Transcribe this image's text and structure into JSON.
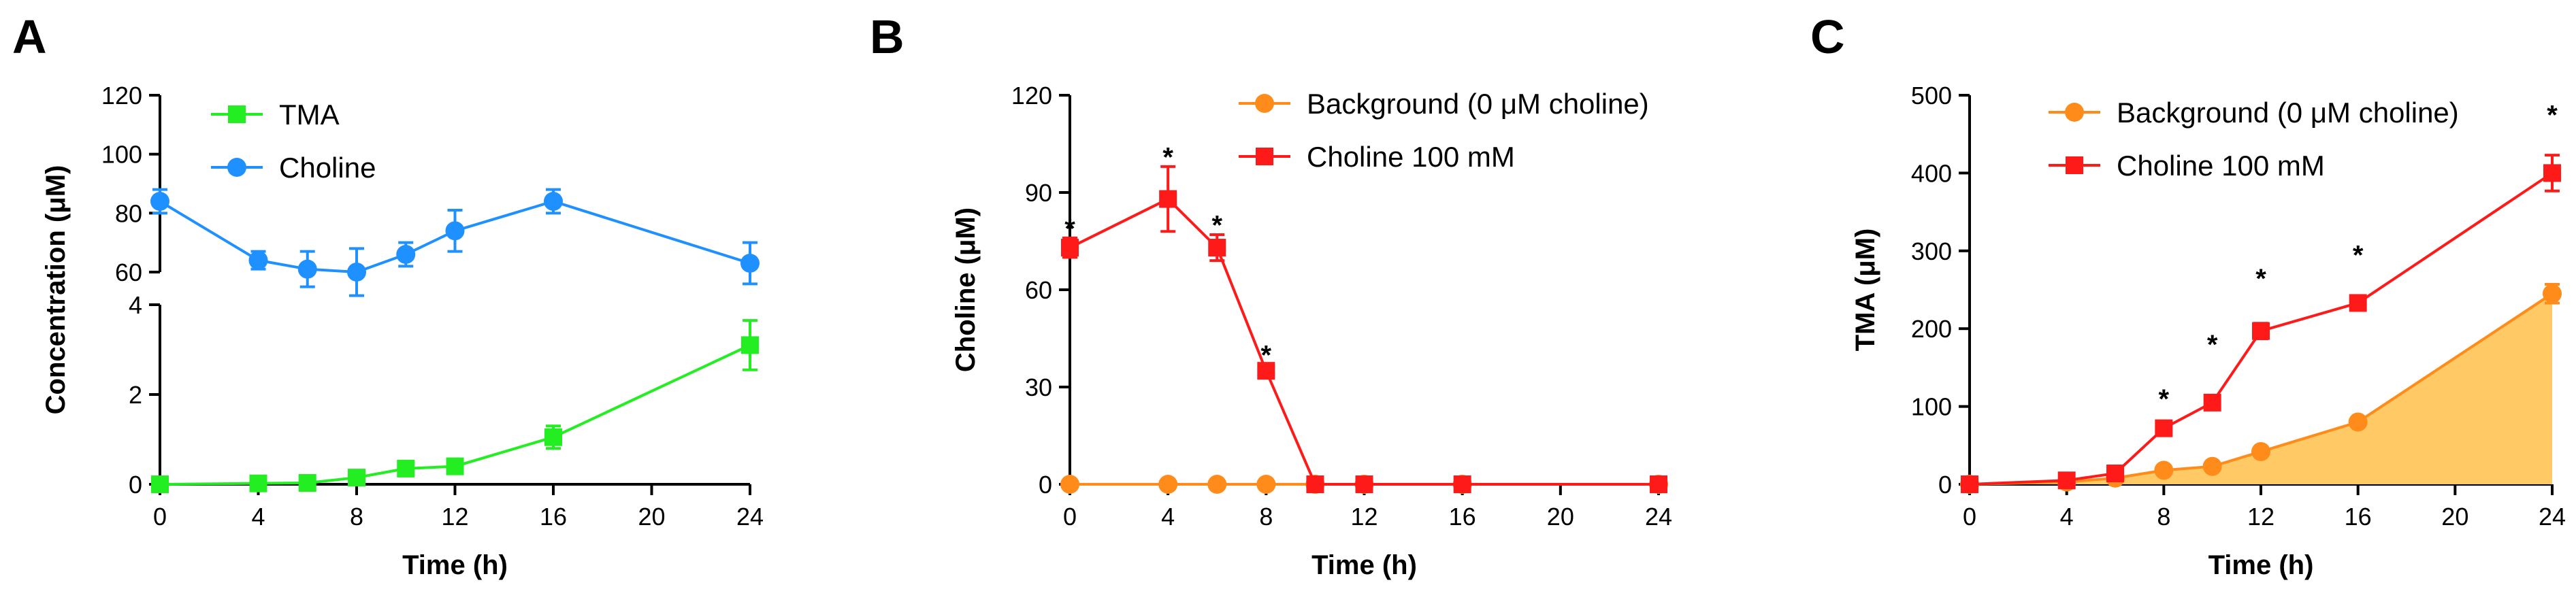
{
  "chart_data": [
    {
      "panel": "A",
      "type": "line",
      "title": "",
      "xlabel": "Time (h)",
      "ylabel": "Concentration (μM)",
      "x_ticks": [
        0,
        4,
        8,
        12,
        16,
        20,
        24
      ],
      "xlim": [
        0,
        24
      ],
      "y_axis_broken": true,
      "y_segments": [
        {
          "range": [
            60,
            120
          ],
          "ticks": [
            60,
            80,
            100,
            120
          ]
        },
        {
          "range": [
            0,
            4
          ],
          "ticks": [
            0,
            2,
            4
          ]
        }
      ],
      "legend_position": "top-left",
      "series": [
        {
          "name": "TMA",
          "color": "#22ee22",
          "marker": "square",
          "segment": 1,
          "x": [
            0,
            4,
            6,
            8,
            10,
            12,
            16,
            24
          ],
          "y": [
            0.0,
            0.02,
            0.03,
            0.15,
            0.35,
            0.4,
            1.05,
            3.1
          ],
          "err": [
            0.03,
            0.03,
            0.05,
            0.08,
            0.1,
            0.1,
            0.25,
            0.55
          ]
        },
        {
          "name": "Choline",
          "color": "#1e90ff",
          "marker": "circle",
          "segment": 0,
          "x": [
            0,
            4,
            6,
            8,
            10,
            12,
            16,
            24
          ],
          "y": [
            84,
            64,
            61,
            60,
            66,
            74,
            84,
            63
          ],
          "err": [
            4,
            3,
            6,
            8,
            4,
            7,
            4,
            7
          ]
        }
      ]
    },
    {
      "panel": "B",
      "type": "line",
      "title": "",
      "xlabel": "Time (h)",
      "ylabel": "Choline (μM)",
      "x_ticks": [
        0,
        4,
        8,
        12,
        16,
        20,
        24
      ],
      "xlim": [
        0,
        24
      ],
      "y_ticks": [
        0,
        30,
        60,
        90,
        120
      ],
      "ylim": [
        0,
        120
      ],
      "legend_position": "top-right",
      "series": [
        {
          "name": "Background (0 μM choline)",
          "color": "#ff8c1a",
          "marker": "circle",
          "x": [
            0,
            4,
            6,
            8,
            10,
            12,
            16,
            24
          ],
          "y": [
            0,
            0,
            0,
            0,
            0,
            0,
            0,
            0
          ],
          "err": [
            0,
            0,
            0,
            0,
            0,
            0,
            0,
            0
          ]
        },
        {
          "name": "Choline 100 mM",
          "color": "#ff1a1a",
          "marker": "square",
          "x": [
            0,
            4,
            6,
            8,
            10,
            12,
            16,
            24
          ],
          "y": [
            73,
            88,
            73,
            35,
            0,
            0,
            0,
            0
          ],
          "err": [
            3,
            10,
            4,
            2,
            0,
            0,
            0,
            0
          ]
        }
      ],
      "annotations": [
        {
          "x": 0,
          "y": 79,
          "text": "*"
        },
        {
          "x": 4,
          "y": 101,
          "text": "*"
        },
        {
          "x": 6,
          "y": 80,
          "text": "*"
        },
        {
          "x": 8,
          "y": 40,
          "text": "*"
        }
      ]
    },
    {
      "panel": "C",
      "type": "area",
      "title": "",
      "xlabel": "Time (h)",
      "ylabel": "TMA (μM)",
      "x_ticks": [
        0,
        4,
        8,
        12,
        16,
        20,
        24
      ],
      "xlim": [
        0,
        24
      ],
      "y_ticks": [
        0,
        100,
        200,
        300,
        400,
        500
      ],
      "ylim": [
        0,
        500
      ],
      "legend_position": "top-left",
      "fill_color": "#ffc966",
      "series": [
        {
          "name": "Background (0 μM choline)",
          "color": "#ff8c1a",
          "marker": "circle",
          "filled": true,
          "x": [
            0,
            4,
            6,
            8,
            10,
            12,
            16,
            24
          ],
          "y": [
            0,
            3,
            8,
            18,
            23,
            42,
            80,
            245
          ],
          "err": [
            0,
            0,
            0,
            0,
            0,
            0,
            0,
            12
          ]
        },
        {
          "name": "Choline 100 mM",
          "color": "#ff1a1a",
          "marker": "square",
          "filled": false,
          "x": [
            0,
            4,
            6,
            8,
            10,
            12,
            16,
            24
          ],
          "y": [
            0,
            5,
            14,
            72,
            105,
            197,
            233,
            400
          ],
          "err": [
            0,
            2,
            3,
            5,
            6,
            10,
            5,
            23
          ]
        }
      ],
      "annotations": [
        {
          "x": 8,
          "y": 110,
          "text": "*"
        },
        {
          "x": 10,
          "y": 180,
          "text": "*"
        },
        {
          "x": 12,
          "y": 265,
          "text": "*"
        },
        {
          "x": 16,
          "y": 295,
          "text": "*"
        },
        {
          "x": 24,
          "y": 475,
          "text": "*"
        }
      ]
    }
  ]
}
